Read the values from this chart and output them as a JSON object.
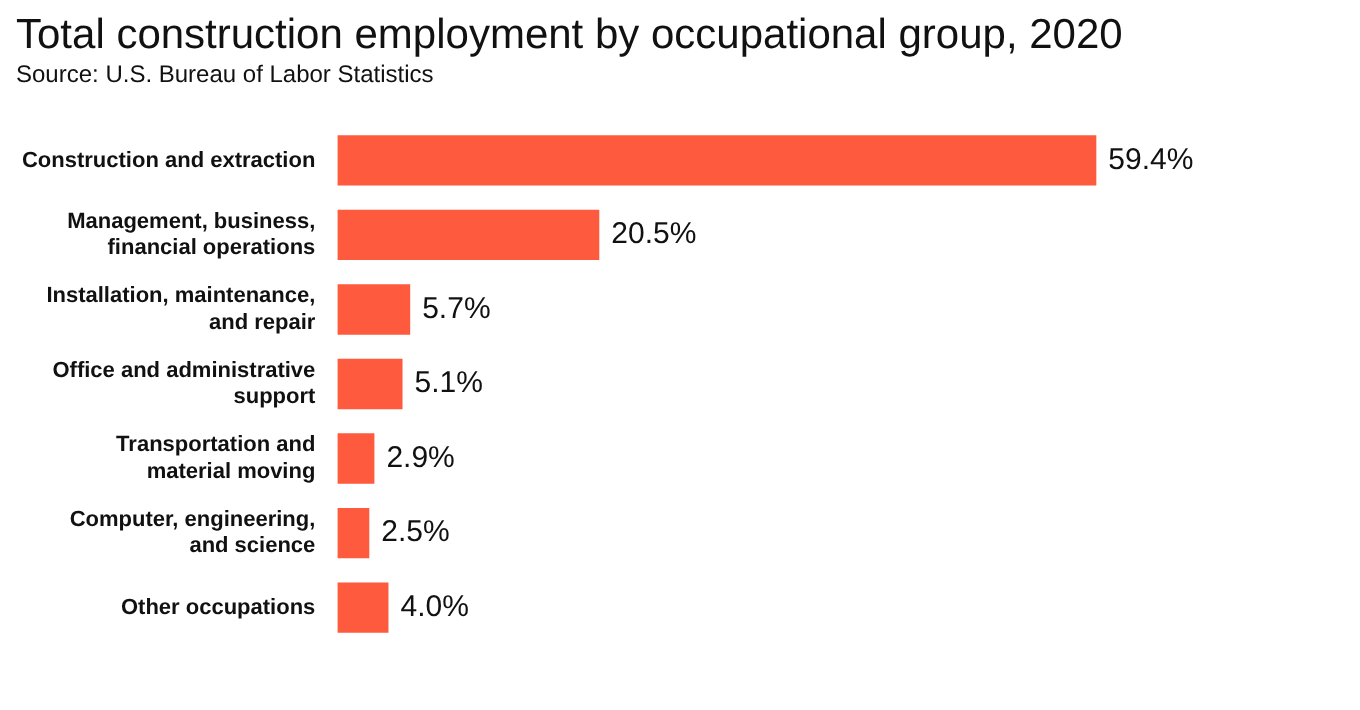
{
  "chart_data": {
    "type": "bar",
    "orientation": "horizontal",
    "title": "Total construction employment by occupational group, 2020",
    "subtitle": "Source: U.S. Bureau of Labor Statistics",
    "categories": [
      "Construction and extraction",
      "Management, business,\nfinancial operations",
      "Installation, maintenance,\nand repair",
      "Office and administrative\nsupport",
      "Transportation and\nmaterial moving",
      "Computer, engineering,\nand science",
      "Other occupations"
    ],
    "values": [
      59.4,
      20.5,
      5.7,
      5.1,
      2.9,
      2.5,
      4.0
    ],
    "value_labels": [
      "59.4%",
      "20.5%",
      "5.7%",
      "5.1%",
      "2.9%",
      "2.5%",
      "4.0%"
    ],
    "color": "#fd5a3e",
    "legend": false,
    "tick_labels": "y"
  }
}
